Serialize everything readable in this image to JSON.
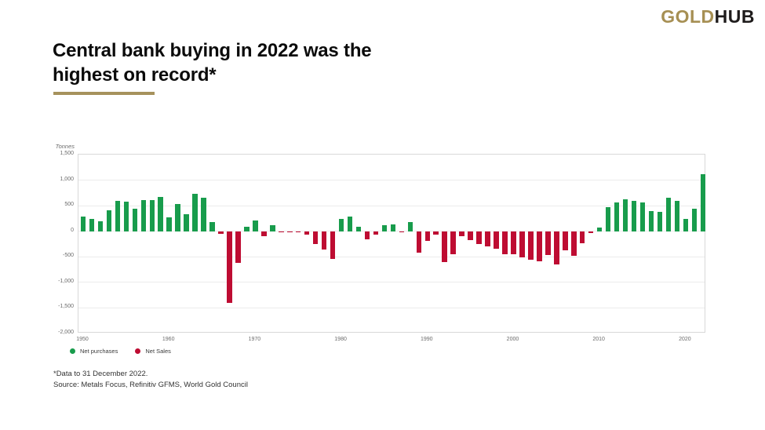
{
  "logo": {
    "gold": "GOLD",
    "hub": "HUB"
  },
  "title": {
    "line1": "Central bank buying in 2022 was the",
    "line2": "highest on record*"
  },
  "colors": {
    "logo_gold": "#A68F53",
    "title_underline": "#A6925C",
    "positive_bar": "#189C4C",
    "negative_bar": "#BE0C32",
    "gridline": "#ececec",
    "axis_text": "#6b6b6b"
  },
  "chart": {
    "unit_label": "Tonnes",
    "y_ticks": [
      "1,500",
      "1,000",
      "500",
      "0",
      "-500",
      "-1,000",
      "-1,500",
      "-2,000"
    ],
    "x_ticks": [
      "1950",
      "1960",
      "1970",
      "1980",
      "1990",
      "2000",
      "2010",
      "2020"
    ],
    "legend": [
      {
        "label": "Net purchases",
        "color": "#189C4C"
      },
      {
        "label": "Net Sales",
        "color": "#BE0C32"
      }
    ]
  },
  "chart_data": {
    "type": "bar",
    "title": "Central bank buying in 2022 was the highest on record*",
    "xlabel": "",
    "ylabel": "Tonnes",
    "ylim": [
      -2000,
      1500
    ],
    "y_gridline_step": 500,
    "grid": "horizontal",
    "legend_position": "bottom-left",
    "positive_color": "#189C4C",
    "negative_color": "#BE0C32",
    "positive_label": "Net purchases",
    "negative_label": "Net Sales",
    "categories": [
      1950,
      1951,
      1952,
      1953,
      1954,
      1955,
      1956,
      1957,
      1958,
      1959,
      1960,
      1961,
      1962,
      1963,
      1964,
      1965,
      1966,
      1967,
      1968,
      1969,
      1970,
      1971,
      1972,
      1973,
      1974,
      1975,
      1976,
      1977,
      1978,
      1979,
      1980,
      1981,
      1982,
      1983,
      1984,
      1985,
      1986,
      1987,
      1988,
      1989,
      1990,
      1991,
      1992,
      1993,
      1994,
      1995,
      1996,
      1997,
      1998,
      1999,
      2000,
      2001,
      2002,
      2003,
      2004,
      2005,
      2006,
      2007,
      2008,
      2009,
      2010,
      2011,
      2012,
      2013,
      2014,
      2015,
      2016,
      2017,
      2018,
      2019,
      2020,
      2021,
      2022
    ],
    "values": [
      285,
      240,
      200,
      405,
      590,
      575,
      435,
      615,
      605,
      670,
      265,
      540,
      330,
      735,
      650,
      185,
      -45,
      -1400,
      -620,
      90,
      210,
      -90,
      120,
      -10,
      -15,
      -15,
      -65,
      -255,
      -355,
      -540,
      245,
      280,
      85,
      -165,
      -70,
      125,
      135,
      -20,
      175,
      -415,
      -195,
      -70,
      -605,
      -450,
      -100,
      -175,
      -255,
      -290,
      -340,
      -455,
      -455,
      -515,
      -555,
      -590,
      -465,
      -650,
      -370,
      -480,
      -235,
      -30,
      80,
      470,
      560,
      625,
      590,
      565,
      395,
      375,
      660,
      590,
      240,
      435,
      1120
    ]
  },
  "footnotes": {
    "line1": "*Data to 31 December 2022.",
    "line2": "Source: Metals Focus, Refinitiv GFMS, World Gold Council"
  }
}
